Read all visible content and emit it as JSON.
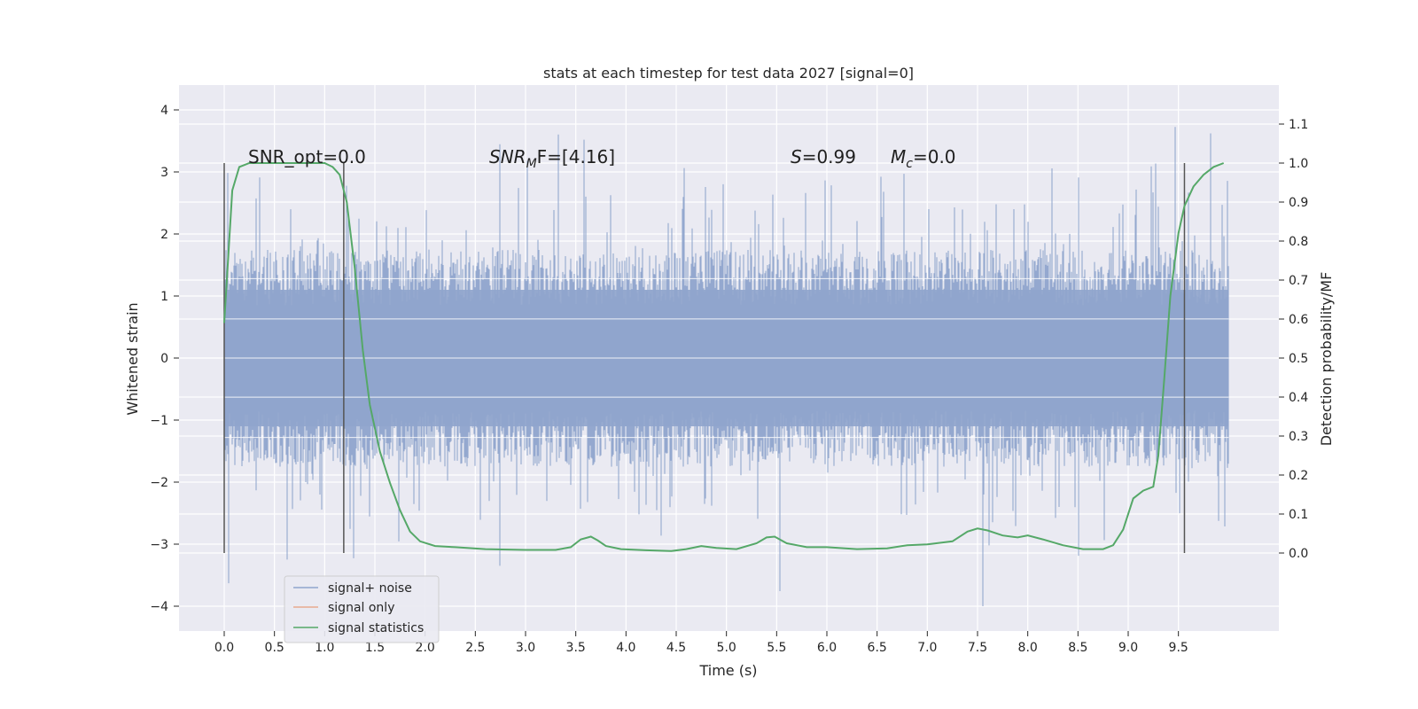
{
  "chart_data": {
    "type": "line",
    "title": "stats at each timestep for test data 2027 [signal=0]",
    "xlabel": "Time (s)",
    "ylabel": "Whitened strain",
    "y2label": "Detection probability/MF",
    "xlim": [
      -0.45,
      10.5
    ],
    "ylim": [
      -4.4,
      4.4
    ],
    "y2lim": [
      -0.2,
      1.2
    ],
    "xticks": [
      "0.0",
      "0.5",
      "1.0",
      "1.5",
      "2.0",
      "2.5",
      "3.0",
      "3.5",
      "4.0",
      "4.5",
      "5.0",
      "5.5",
      "6.0",
      "6.5",
      "7.0",
      "7.5",
      "8.0",
      "8.5",
      "9.0",
      "9.5"
    ],
    "yticks": [
      "4",
      "3",
      "2",
      "1",
      "0",
      "−1",
      "−2",
      "−3",
      "−4"
    ],
    "y2ticks": [
      "1.1",
      "1.0",
      "0.9",
      "0.8",
      "0.7",
      "0.6",
      "0.5",
      "0.4",
      "0.3",
      "0.2",
      "0.1",
      "0.0"
    ],
    "grid": true,
    "legend_position": "lower-left",
    "annotations": {
      "snr_opt": "SNR_opt=0.0",
      "snr_mf_sym": "SNR",
      "snr_mf_sub": "M",
      "snr_mf_rest": "F=[4.16]",
      "s_sym": "S",
      "s_value": "=0.99",
      "mc_sym": "M",
      "mc_sub": "c",
      "mc_value": "=0.0"
    },
    "vertical_markers_x": [
      0.0,
      1.19,
      9.56
    ],
    "noise_band": {
      "x_range": [
        0.0,
        10.0
      ],
      "typical_amplitude": 1.3,
      "extreme_range": [
        -4.0,
        4.0
      ]
    },
    "series": [
      {
        "name": "signal+ noise",
        "color": "#8fa4cc",
        "axis": "left",
        "description_values": "dense noise, core ±1.3, peaks to ±4"
      },
      {
        "name": "signal only",
        "color": "#e7a98f",
        "axis": "left",
        "values": []
      },
      {
        "name": "signal statistics",
        "color": "#55a868",
        "axis": "right",
        "x": [
          0.0,
          0.08,
          0.15,
          0.25,
          0.4,
          0.6,
          0.8,
          1.0,
          1.08,
          1.15,
          1.22,
          1.3,
          1.38,
          1.45,
          1.55,
          1.65,
          1.75,
          1.85,
          1.95,
          2.1,
          2.3,
          2.6,
          3.0,
          3.3,
          3.45,
          3.55,
          3.65,
          3.72,
          3.8,
          3.95,
          4.2,
          4.45,
          4.6,
          4.75,
          4.9,
          5.1,
          5.3,
          5.4,
          5.48,
          5.6,
          5.8,
          6.0,
          6.3,
          6.6,
          6.8,
          7.0,
          7.25,
          7.4,
          7.5,
          7.6,
          7.75,
          7.9,
          8.0,
          8.15,
          8.35,
          8.55,
          8.75,
          8.85,
          8.95,
          9.05,
          9.15,
          9.25,
          9.3,
          9.36,
          9.42,
          9.5,
          9.56,
          9.65,
          9.75,
          9.85,
          9.95
        ],
        "values": [
          0.59,
          0.93,
          0.99,
          1.0,
          1.0,
          1.0,
          1.0,
          1.0,
          0.99,
          0.97,
          0.9,
          0.73,
          0.52,
          0.38,
          0.26,
          0.18,
          0.11,
          0.055,
          0.03,
          0.018,
          0.015,
          0.01,
          0.008,
          0.008,
          0.015,
          0.035,
          0.042,
          0.032,
          0.018,
          0.01,
          0.007,
          0.005,
          0.01,
          0.018,
          0.013,
          0.01,
          0.025,
          0.04,
          0.042,
          0.025,
          0.015,
          0.015,
          0.01,
          0.012,
          0.02,
          0.022,
          0.03,
          0.055,
          0.063,
          0.058,
          0.045,
          0.04,
          0.045,
          0.035,
          0.02,
          0.01,
          0.01,
          0.02,
          0.06,
          0.14,
          0.16,
          0.17,
          0.25,
          0.45,
          0.66,
          0.82,
          0.89,
          0.94,
          0.97,
          0.99,
          1.0
        ]
      }
    ]
  }
}
